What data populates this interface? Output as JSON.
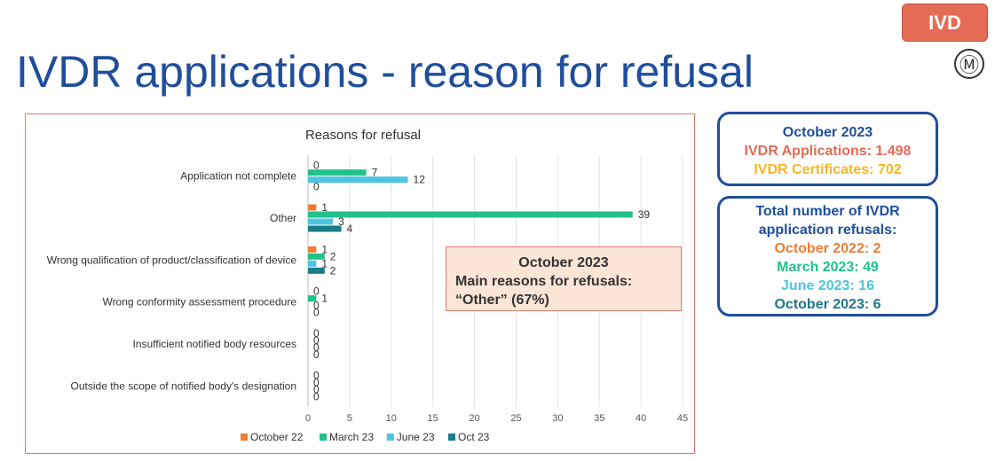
{
  "header": {
    "badge": "IVD",
    "logo": "Ⓜ",
    "title": "IVDR applications - reason for refusal"
  },
  "callout": {
    "title": "October 2023",
    "line1": "Main reasons for refusals:",
    "line2": "“Other” (67%)"
  },
  "summary": {
    "title": "October 2023",
    "applications": "IVDR Applications: 1.498",
    "certificates": "IVDR Certificates: 702",
    "colors": {
      "title": "#1f4e9c",
      "applications": "#e46c55",
      "certificates": "#f5b623"
    }
  },
  "refusals": {
    "title_line1": "Total number of IVDR",
    "title_line2": "application refusals:",
    "oct22": "October 2022: 2",
    "mar23": "March 2023: 49",
    "jun23": "June 2023: 16",
    "oct23": "October 2023: 6"
  },
  "chart_data": {
    "type": "bar",
    "orientation": "horizontal",
    "title": "Reasons for refusal",
    "categories": [
      "Application not complete",
      "Other",
      "Wrong qualification of product/classification of device",
      "Wrong conformity assessment procedure",
      "Insufficient notified body resources",
      "Outside the scope of notified body's designation"
    ],
    "series": [
      {
        "name": "October 22",
        "color": "#ed7d31",
        "values": [
          0,
          1,
          1,
          0,
          0,
          0
        ]
      },
      {
        "name": "March 23",
        "color": "#22c08a",
        "values": [
          7,
          39,
          2,
          1,
          0,
          0
        ]
      },
      {
        "name": "June 23",
        "color": "#4dc4e0",
        "values": [
          12,
          3,
          1,
          0,
          0,
          0
        ]
      },
      {
        "name": "Oct 23",
        "color": "#1b7a86",
        "values": [
          0,
          4,
          2,
          0,
          0,
          0
        ]
      }
    ],
    "xlim": [
      0,
      45
    ],
    "xticks": [
      0,
      5,
      10,
      15,
      20,
      25,
      30,
      35,
      40,
      45
    ],
    "grid": true,
    "legend": "bottom"
  }
}
